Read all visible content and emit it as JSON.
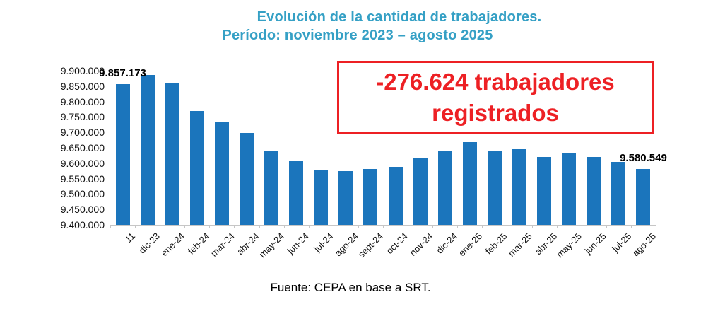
{
  "title": {
    "line1": "Evolución de la cantidad de trabajadores.",
    "line2": "Período: noviembre 2023 – agosto 2025"
  },
  "annotation_box": {
    "text": "-276.624 trabajadores registrados"
  },
  "source": "Fuente: CEPA en base a SRT.",
  "colors": {
    "bar": "#1b75bc",
    "title_text": "#35a0c5",
    "annotation_red": "#ed2024",
    "axis_line": "#c6c6c6",
    "label_text": "#111111"
  },
  "chart_data": {
    "type": "bar",
    "title": "Evolución de la cantidad de trabajadores. Período: noviembre 2023 – agosto 2025",
    "xlabel": "",
    "ylabel": "",
    "grid": false,
    "legend": false,
    "categories": [
      "11",
      "dic-23",
      "ene-24",
      "feb-24",
      "mar-24",
      "abr-24",
      "may-24",
      "jun-24",
      "jul-24",
      "ago-24",
      "sept-24",
      "oct-24",
      "nov-24",
      "dic-24",
      "ene-25",
      "feb-25",
      "mar-25",
      "abr-25",
      "may-25",
      "jun-25",
      "jul-25",
      "ago-25"
    ],
    "values": [
      9857173,
      9886000,
      9859000,
      9770000,
      9733000,
      9699000,
      9638000,
      9607000,
      9578000,
      9574000,
      9582000,
      9588000,
      9616000,
      9641000,
      9668000,
      9638000,
      9646000,
      9620000,
      9633000,
      9621000,
      9603000,
      9580549
    ],
    "point_labels": [
      {
        "index": 0,
        "text": "9.857.173"
      },
      {
        "index": 21,
        "text": "9.580.549"
      }
    ],
    "y_axis": {
      "min": 9400000,
      "max": 9900000,
      "step": 50000,
      "tick_labels": [
        "9.900.000",
        "9.850.000",
        "9.800.000",
        "9.750.000",
        "9.700.000",
        "9.650.000",
        "9.600.000",
        "9.550.000",
        "9.500.000",
        "9.450.000",
        "9.400.000"
      ]
    }
  }
}
